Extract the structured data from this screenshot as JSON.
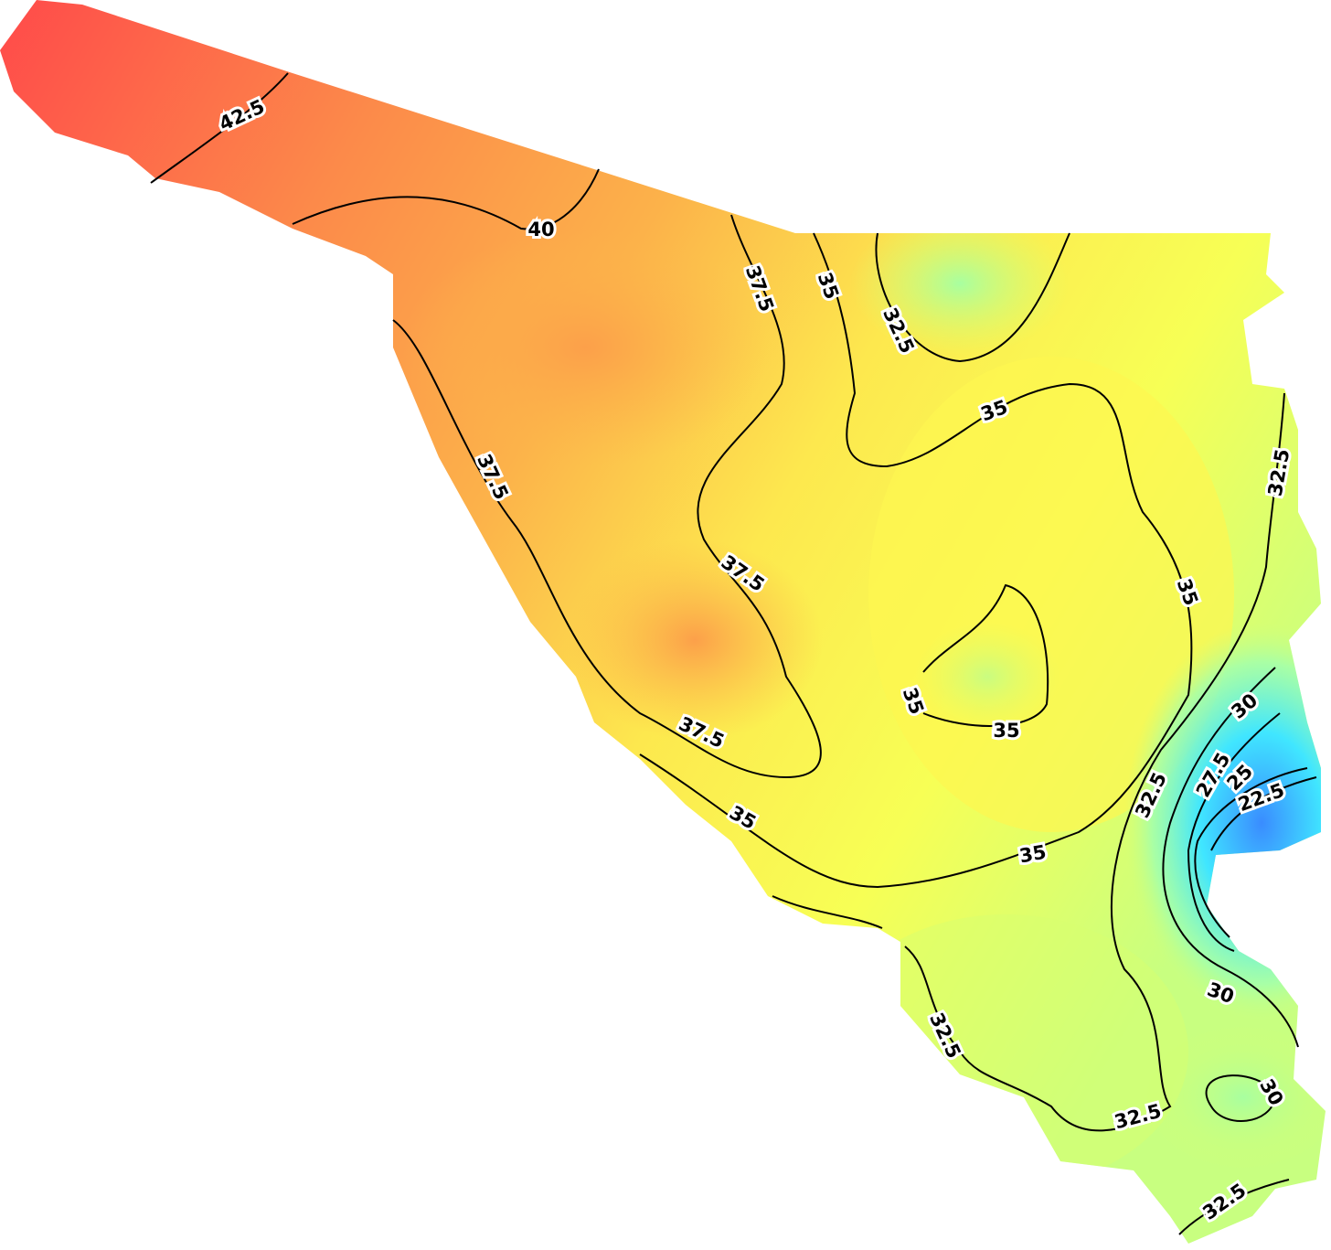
{
  "contour_labels": [
    "42.5",
    "40",
    "37.5",
    "35",
    "32.5",
    "35",
    "32.5",
    "37.5",
    "37.5",
    "35",
    "35",
    "35",
    "37.5",
    "30",
    "27.5",
    "25",
    "22.5",
    "32.5",
    "35",
    "35",
    "30",
    "32.5",
    "30",
    "32.5",
    "32.5"
  ]
}
